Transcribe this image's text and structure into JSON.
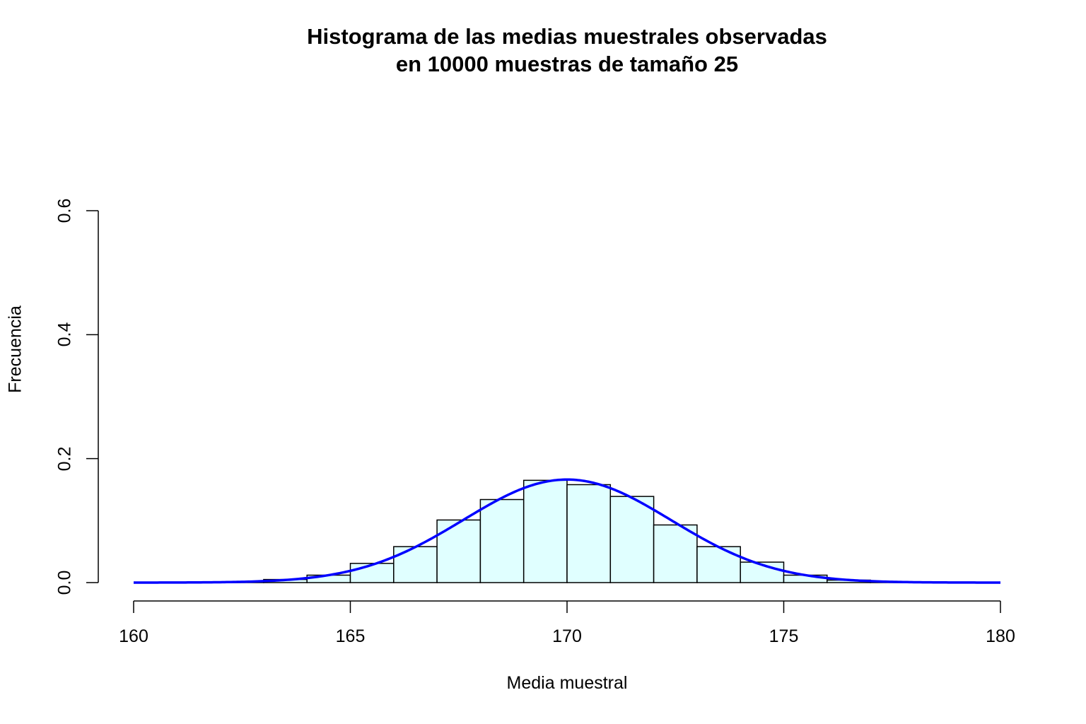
{
  "chart_data": {
    "type": "bar",
    "title": "Histograma de las medias muestrales observadas\nen 10000 muestras de tamaño 25",
    "title_lines": [
      "Histograma de las medias muestrales observadas",
      "en 10000 muestras de tamaño 25"
    ],
    "xlabel": "Media muestral",
    "ylabel": "Frecuencia",
    "xlim": [
      160,
      180
    ],
    "ylim": [
      0,
      0.6
    ],
    "x_ticks": [
      "160",
      "165",
      "170",
      "175",
      "180"
    ],
    "y_ticks": [
      "0.0",
      "0.2",
      "0.4",
      "0.6"
    ],
    "bin_width": 1,
    "bins": [
      {
        "from": 162,
        "to": 163,
        "density": 0.001
      },
      {
        "from": 163,
        "to": 164,
        "density": 0.005
      },
      {
        "from": 164,
        "to": 165,
        "density": 0.012
      },
      {
        "from": 165,
        "to": 166,
        "density": 0.031
      },
      {
        "from": 166,
        "to": 167,
        "density": 0.058
      },
      {
        "from": 167,
        "to": 168,
        "density": 0.101
      },
      {
        "from": 168,
        "to": 169,
        "density": 0.134
      },
      {
        "from": 169,
        "to": 170,
        "density": 0.165
      },
      {
        "from": 170,
        "to": 171,
        "density": 0.158
      },
      {
        "from": 171,
        "to": 172,
        "density": 0.139
      },
      {
        "from": 172,
        "to": 173,
        "density": 0.093
      },
      {
        "from": 173,
        "to": 174,
        "density": 0.058
      },
      {
        "from": 174,
        "to": 175,
        "density": 0.033
      },
      {
        "from": 175,
        "to": 176,
        "density": 0.012
      },
      {
        "from": 176,
        "to": 177,
        "density": 0.004
      },
      {
        "from": 177,
        "to": 178,
        "density": 0.001
      }
    ],
    "overlay_curve": {
      "type": "normal",
      "mean": 170,
      "sd": 2.4,
      "color": "#0000ff",
      "x_range": [
        160,
        180
      ]
    },
    "colors": {
      "bar_fill": "#e0ffff",
      "bar_edge": "#000000",
      "curve": "#0000ff"
    },
    "grid": false,
    "legend": null
  }
}
